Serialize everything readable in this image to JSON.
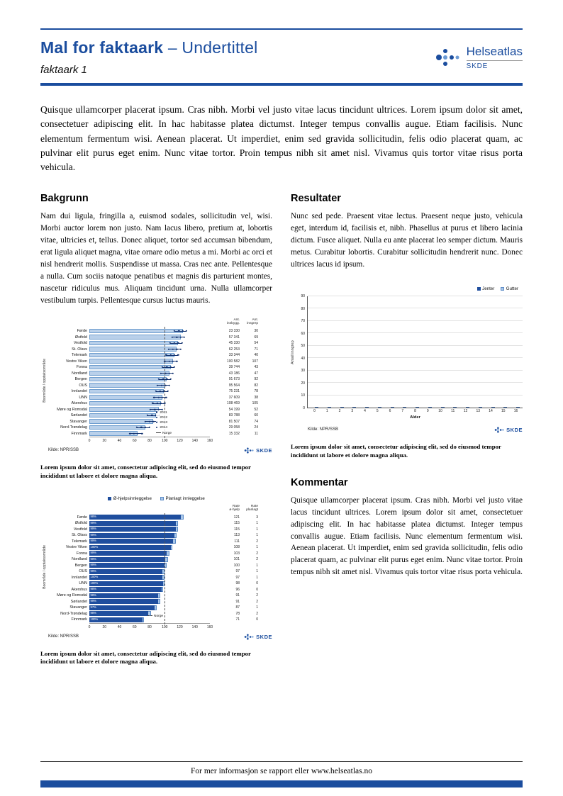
{
  "colors": {
    "primary": "#1b4d9e",
    "bar_dark": "#1f4e9e",
    "bar_light": "#a9c7e9",
    "marker": "#10306e"
  },
  "logo": {
    "name": "Helseatlas",
    "skde": "SKDE"
  },
  "header": {
    "title": "Mal for faktaark",
    "subtitle": "– Undertittel",
    "doc_label": "faktaark 1"
  },
  "intro": "Quisque ullamcorper placerat ipsum. Cras nibh. Morbi vel justo vitae lacus tincidunt ultrices. Lorem ipsum dolor sit amet, consectetuer adipiscing elit. In hac habitasse platea dictumst. Integer tempus convallis augue. Etiam facilisis. Nunc elementum fermentum wisi. Aenean placerat. Ut imperdiet, enim sed gravida sollicitudin, felis odio placerat quam, ac pulvinar elit purus eget enim. Nunc vitae tortor. Proin tempus nibh sit amet nisl. Vivamus quis tortor vitae risus porta vehicula.",
  "sections": {
    "bakgrunn": {
      "heading": "Bakgrunn",
      "text": "Nam dui ligula, fringilla a, euismod sodales, sollicitudin vel, wisi. Morbi auctor lorem non justo. Nam lacus libero, pretium at, lobortis vitae, ultricies et, tellus. Donec aliquet, tortor sed accumsan bibendum, erat ligula aliquet magna, vitae ornare odio metus a mi. Morbi ac orci et nisl hendrerit mollis. Suspendisse ut massa. Cras nec ante. Pellentesque a nulla. Cum sociis natoque penatibus et magnis dis parturient montes, nascetur ridiculus mus. Aliquam tincidunt urna. Nulla ullamcorper vestibulum turpis. Pellentesque cursus luctus mauris."
    },
    "resultater": {
      "heading": "Resultater",
      "text": "Nunc sed pede. Praesent vitae lectus. Praesent neque justo, vehicula eget, interdum id, facilisis et, nibh. Phasellus at purus et libero lacinia dictum. Fusce aliquet. Nulla eu ante placerat leo semper dictum. Mauris metus. Curabitur lobortis. Curabitur sollicitudin hendrerit nunc. Donec ultrices lacus id ipsum."
    },
    "kommentar": {
      "heading": "Kommentar",
      "text": "Quisque ullamcorper placerat ipsum. Cras nibh. Morbi vel justo vitae lacus tincidunt ultrices. Lorem ipsum dolor sit amet, consectetuer adipiscing elit. In hac habitasse platea dictumst. Integer tempus convallis augue. Etiam facilisis. Nunc elementum fermentum wisi. Aenean placerat. Ut imperdiet, enim sed gravida sollicitudin, felis odio placerat quam, ac pulvinar elit purus eget enim. Nunc vitae tortor. Proin tempus nibh sit amet nisl. Vivamus quis tortor vitae risus porta vehicula."
    }
  },
  "captions": {
    "chart1": "Lorem ipsum dolor sit amet, consectetur adipiscing elit, sed do eiusmod tempor incididunt ut labore et dolore magna aliqua.",
    "chart2": "Lorem ipsum dolor sit amet, consectetur adipiscing elit, sed do eiusmod tempor incididunt ut labore et dolore magna aliqua.",
    "chart3": "Lorem ipsum dolor sit amet, consectetur adipiscing elit, sed do eiusmod tempor incididunt ut labore et dolore magna aliqua."
  },
  "footer": {
    "text": "For mer informasjon se rapport eller www.helseatlas.no"
  },
  "chart_data": [
    {
      "id": "regions-rate-with-years",
      "type": "bar",
      "orientation": "horizontal",
      "ylabel": "Boområde / opptaksområde",
      "xlim": [
        0,
        160
      ],
      "xticks": [
        0,
        20,
        40,
        60,
        80,
        100,
        120,
        140,
        160
      ],
      "reference_line": 100,
      "legend": {
        "years": [
          "2011",
          "2012",
          "2013",
          "2014"
        ],
        "line": "Norge"
      },
      "col_headers": [
        "Ant. innbygg.",
        "Ant. inngrep"
      ],
      "source": "Kilde: NPR/SSB",
      "rows": [
        {
          "label": "Førde",
          "rate": 124,
          "markers": [
            113,
            119,
            124,
            129
          ],
          "innbygg": "23 330",
          "inngrep": "30"
        },
        {
          "label": "Østfold",
          "rate": 121,
          "markers": [
            110,
            116,
            121,
            126
          ],
          "innbygg": "57 341",
          "inngrep": "69"
        },
        {
          "label": "Vestfold",
          "rate": 118,
          "markers": [
            107,
            113,
            118,
            123
          ],
          "innbygg": "45 330",
          "inngrep": "54"
        },
        {
          "label": "St. Olavs",
          "rate": 116,
          "markers": [
            105,
            111,
            116,
            121
          ],
          "innbygg": "62 253",
          "inngrep": "71"
        },
        {
          "label": "Telemark",
          "rate": 113,
          "markers": [
            102,
            108,
            113,
            118
          ],
          "innbygg": "33 344",
          "inngrep": "40"
        },
        {
          "label": "Vestre Viken",
          "rate": 111,
          "markers": [
            100,
            106,
            111,
            116
          ],
          "innbygg": "100 582",
          "inngrep": "107"
        },
        {
          "label": "Fonna",
          "rate": 108,
          "markers": [
            97,
            103,
            108,
            113
          ],
          "innbygg": "39 744",
          "inngrep": "43"
        },
        {
          "label": "Nordland",
          "rate": 106,
          "markers": [
            95,
            101,
            106,
            111
          ],
          "innbygg": "43 186",
          "inngrep": "47"
        },
        {
          "label": "Bergen",
          "rate": 103,
          "markers": [
            92,
            98,
            103,
            108
          ],
          "innbygg": "91 673",
          "inngrep": "92"
        },
        {
          "label": "OUS",
          "rate": 101,
          "markers": [
            90,
            96,
            101,
            106
          ],
          "innbygg": "95 564",
          "inngrep": "82"
        },
        {
          "label": "Innlandet",
          "rate": 99,
          "markers": [
            88,
            94,
            99,
            104
          ],
          "innbygg": "75 231",
          "inngrep": "78"
        },
        {
          "label": "UNN",
          "rate": 97,
          "markers": [
            86,
            92,
            97,
            102
          ],
          "innbygg": "37 609",
          "inngrep": "38"
        },
        {
          "label": "Akershus",
          "rate": 95,
          "markers": [
            84,
            90,
            95,
            100
          ],
          "innbygg": "108 469",
          "inngrep": "105"
        },
        {
          "label": "Møre og Romsdal",
          "rate": 92,
          "markers": [
            81,
            87,
            92,
            97
          ],
          "innbygg": "54 199",
          "inngrep": "52"
        },
        {
          "label": "Sørlandet",
          "rate": 88,
          "markers": [
            77,
            83,
            88,
            93
          ],
          "innbygg": "83 788",
          "inngrep": "60"
        },
        {
          "label": "Stavanger",
          "rate": 85,
          "markers": [
            74,
            80,
            85,
            90
          ],
          "innbygg": "81 507",
          "inngrep": "74"
        },
        {
          "label": "Nord-Trøndelag",
          "rate": 74,
          "markers": [
            63,
            69,
            74,
            80
          ],
          "innbygg": "29 058",
          "inngrep": "24"
        },
        {
          "label": "Finnmark",
          "rate": 64,
          "markers": [
            54,
            59,
            64,
            70
          ],
          "innbygg": "15 332",
          "inngrep": "11"
        }
      ]
    },
    {
      "id": "regions-admission-type",
      "type": "bar",
      "orientation": "horizontal",
      "stacked": true,
      "legend": [
        "Ø-hjelpsinnleggelse",
        "Planlagt innleggelse"
      ],
      "ylabel": "Boområde / opptaksområde",
      "xlim": [
        0,
        160
      ],
      "xticks": [
        0,
        20,
        40,
        60,
        80,
        100,
        120,
        140,
        160
      ],
      "reference_line": 100,
      "norge_label": "Norge",
      "col_headers": [
        "Rate ø-hjelp",
        "Rate planlagt"
      ],
      "source": "Kilde: NPR/SSB",
      "rows": [
        {
          "label": "Førde",
          "pct": "98%",
          "o_hjelp": 121,
          "planlagt": 3
        },
        {
          "label": "Østfold",
          "pct": "99%",
          "o_hjelp": 115,
          "planlagt": 1
        },
        {
          "label": "Vestfold",
          "pct": "99%",
          "o_hjelp": 115,
          "planlagt": 1
        },
        {
          "label": "St. Olavs",
          "pct": "99%",
          "o_hjelp": 113,
          "planlagt": 1
        },
        {
          "label": "Telemark",
          "pct": "99%",
          "o_hjelp": 111,
          "planlagt": 2
        },
        {
          "label": "Vestre Viken",
          "pct": "100%",
          "o_hjelp": 108,
          "planlagt": 1
        },
        {
          "label": "Fonna",
          "pct": "99%",
          "o_hjelp": 103,
          "planlagt": 2
        },
        {
          "label": "Nordland",
          "pct": "99%",
          "o_hjelp": 101,
          "planlagt": 2
        },
        {
          "label": "Bergen",
          "pct": "99%",
          "o_hjelp": 100,
          "planlagt": 1
        },
        {
          "label": "OUS",
          "pct": "99%",
          "o_hjelp": 97,
          "planlagt": 1
        },
        {
          "label": "Innlandet",
          "pct": "100%",
          "o_hjelp": 97,
          "planlagt": 1
        },
        {
          "label": "UNN",
          "pct": "100%",
          "o_hjelp": 98,
          "planlagt": 0
        },
        {
          "label": "Akershus",
          "pct": "98%",
          "o_hjelp": 96,
          "planlagt": 0
        },
        {
          "label": "Møre og Romsdal",
          "pct": "98%",
          "o_hjelp": 91,
          "planlagt": 2
        },
        {
          "label": "Sørlandet",
          "pct": "99%",
          "o_hjelp": 91,
          "planlagt": 2
        },
        {
          "label": "Stavanger",
          "pct": "97%",
          "o_hjelp": 87,
          "planlagt": 1
        },
        {
          "label": "Nord-Trøndelag",
          "pct": "98%",
          "o_hjelp": 78,
          "planlagt": 2
        },
        {
          "label": "Finnmark",
          "pct": "100%",
          "o_hjelp": 71,
          "planlagt": 0
        }
      ]
    },
    {
      "id": "age-distribution",
      "type": "bar",
      "orientation": "vertical",
      "legend": [
        "Jenter",
        "Gutter"
      ],
      "xlabel": "Alder",
      "ylabel": "Antall inngrep",
      "ylim": [
        0,
        90
      ],
      "yticks": [
        0,
        10,
        20,
        30,
        40,
        50,
        60,
        70,
        80,
        90
      ],
      "categories": [
        "0",
        "1",
        "2",
        "3",
        "4",
        "5",
        "6",
        "7",
        "8",
        "9",
        "10",
        "11",
        "12",
        "13",
        "14",
        "15",
        "16"
      ],
      "series": [
        {
          "name": "Jenter",
          "values": [
            4,
            4,
            5,
            6,
            9,
            13,
            17,
            23,
            30,
            36,
            42,
            50,
            55,
            58,
            62,
            70,
            73
          ]
        },
        {
          "name": "Gutter",
          "values": [
            5,
            4,
            4,
            7,
            11,
            15,
            19,
            26,
            28,
            33,
            38,
            45,
            68,
            52,
            77,
            65,
            72
          ]
        }
      ],
      "source": "Kilde: NPR/SSB"
    }
  ]
}
